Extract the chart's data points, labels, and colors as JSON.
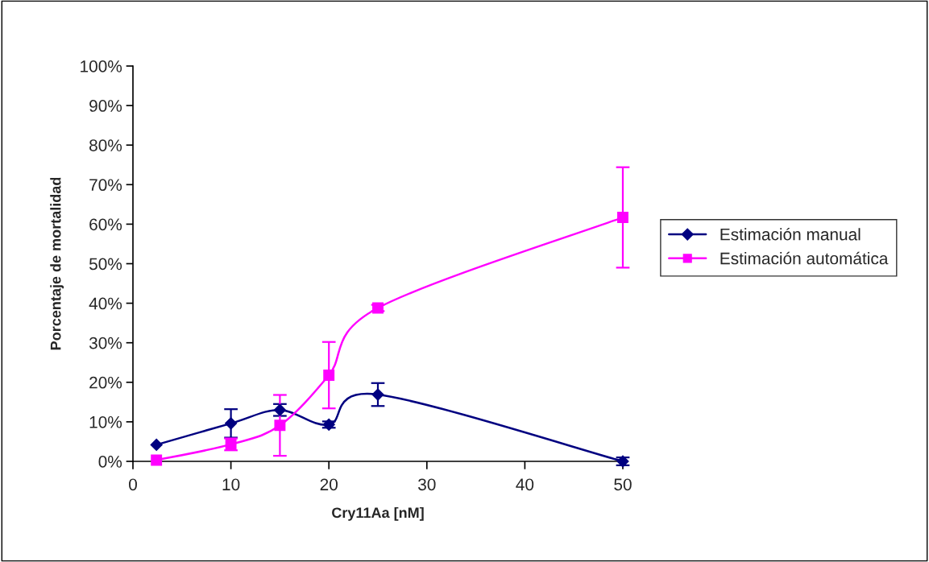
{
  "chart_data": {
    "type": "line",
    "xlabel": "Cry11Aa [nM]",
    "ylabel": "Porcentaje de mortalidad",
    "x": [
      2.4,
      10,
      15,
      20,
      25,
      50
    ],
    "series": [
      {
        "name": "Estimación manual",
        "color": "#000080",
        "marker": "diamond",
        "values": [
          4.2,
          9.6,
          13.0,
          9.3,
          16.9,
          0
        ],
        "errors": [
          null,
          3.6,
          1.5,
          0.8,
          2.9,
          1
        ]
      },
      {
        "name": "Estimación automática",
        "color": "#ff00ff",
        "marker": "square",
        "values": [
          0.3,
          4.3,
          9.1,
          21.8,
          38.8,
          61.7
        ],
        "errors": [
          null,
          1.5,
          7.7,
          8.4,
          0.8,
          12.7
        ]
      }
    ],
    "xlim": [
      0,
      50
    ],
    "xticks": [
      0,
      10,
      20,
      30,
      40,
      50
    ],
    "ylim": [
      0,
      100
    ],
    "yticks": [
      {
        "value": 0,
        "label": "0%"
      },
      {
        "value": 10,
        "label": "10%"
      },
      {
        "value": 20,
        "label": "20%"
      },
      {
        "value": 30,
        "label": "30%"
      },
      {
        "value": 40,
        "label": "40%"
      },
      {
        "value": 50,
        "label": "50%"
      },
      {
        "value": 60,
        "label": "60%"
      },
      {
        "value": 70,
        "label": "70%"
      },
      {
        "value": 80,
        "label": "80%"
      },
      {
        "value": 90,
        "label": "90%"
      },
      {
        "value": 100,
        "label": "100%"
      }
    ],
    "grid": false,
    "legend": "right",
    "line_style": "solid"
  }
}
